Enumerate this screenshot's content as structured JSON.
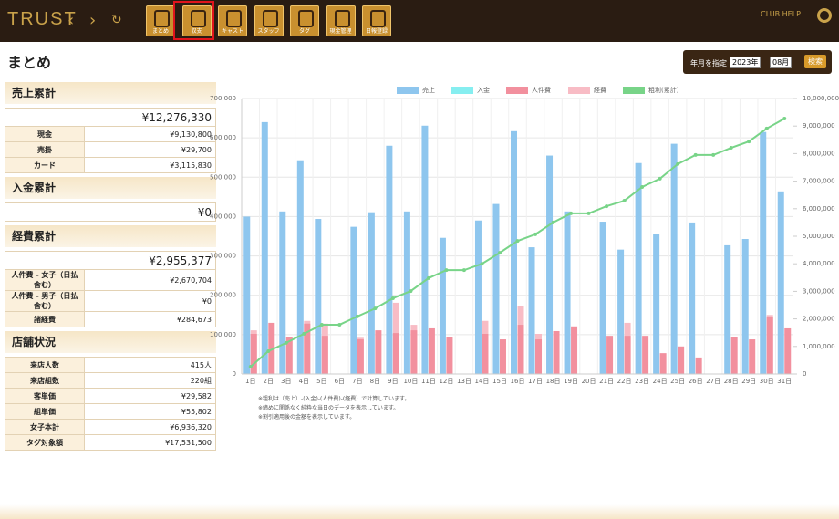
{
  "header": {
    "logo": "TRUST",
    "nav": [
      "まとめ",
      "収支",
      "キャスト",
      "スタッフ",
      "タグ",
      "現金管理",
      "日報登録"
    ],
    "help": "CLUB HELP"
  },
  "page_title": "まとめ",
  "date_filter": {
    "label": "年月を指定",
    "year": "2023年",
    "month": "08月",
    "button": "検索"
  },
  "panels": [
    {
      "title": "売上累計",
      "total": "¥12,276,330",
      "rows": [
        [
          "現金",
          "¥9,130,800"
        ],
        [
          "売掛",
          "¥29,700"
        ],
        [
          "カード",
          "¥3,115,830"
        ]
      ]
    },
    {
      "title": "入金累計",
      "total": "¥0",
      "rows": []
    },
    {
      "title": "経費累計",
      "total": "¥2,955,377",
      "rows": [
        [
          "人件費 - 女子（日払含む）",
          "¥2,670,704"
        ],
        [
          "人件費 - 男子（日払含む）",
          "¥0"
        ],
        [
          "諸経費",
          "¥284,673"
        ]
      ]
    },
    {
      "title": "店舗状況",
      "rows": [
        [
          "来店人数",
          "415人"
        ],
        [
          "来店組数",
          "220組"
        ],
        [
          "客単価",
          "¥29,582"
        ],
        [
          "組単価",
          "¥55,802"
        ],
        [
          "女子本計",
          "¥6,936,320"
        ],
        [
          "タグ対象額",
          "¥17,531,500"
        ]
      ]
    }
  ],
  "notes": [
    "※粗利は（売上）-(入金)-(人件費)-(経費）で計算しています。",
    "※締めに関係なく純粋な当日のデータを表示しています。",
    "※割引適用後の金額を表示しています。"
  ],
  "chart_data": {
    "type": "bar",
    "categories": [
      "1日",
      "2日",
      "3日",
      "4日",
      "5日",
      "6日",
      "7日",
      "8日",
      "9日",
      "10日",
      "11日",
      "12日",
      "13日",
      "14日",
      "15日",
      "16日",
      "17日",
      "18日",
      "19日",
      "20日",
      "21日",
      "22日",
      "23日",
      "24日",
      "25日",
      "26日",
      "27日",
      "28日",
      "29日",
      "30日",
      "31日"
    ],
    "series": [
      {
        "name": "売上",
        "color": "#8ec6ee",
        "values": [
          400000,
          640000,
          413000,
          543000,
          394000,
          0,
          374000,
          411000,
          580000,
          413000,
          631000,
          346000,
          0,
          390000,
          432000,
          617000,
          322000,
          555000,
          413000,
          0,
          387000,
          316000,
          536000,
          355000,
          585000,
          385000,
          0,
          327000,
          343000,
          615000,
          464000
        ]
      },
      {
        "name": "入金",
        "color": "#86eef0",
        "values": [
          0,
          0,
          0,
          0,
          0,
          0,
          0,
          0,
          0,
          0,
          0,
          0,
          0,
          0,
          0,
          0,
          0,
          0,
          0,
          0,
          0,
          0,
          0,
          0,
          0,
          0,
          0,
          0,
          0,
          0,
          0
        ]
      },
      {
        "name": "人件費",
        "color": "#f2909e",
        "values": [
          102000,
          130000,
          93000,
          128000,
          97000,
          0,
          88000,
          111000,
          104000,
          111000,
          116000,
          93000,
          0,
          102000,
          88000,
          125000,
          88000,
          109000,
          121000,
          0,
          97000,
          97000,
          97000,
          53000,
          70000,
          42000,
          0,
          93000,
          88000,
          144000,
          116000
        ]
      },
      {
        "name": "経費",
        "color": "#f8bcc5",
        "values": [
          111000,
          0,
          0,
          135000,
          128000,
          0,
          92000,
          0,
          181000,
          125000,
          0,
          0,
          0,
          135000,
          0,
          172000,
          102000,
          0,
          0,
          0,
          0,
          130000,
          0,
          0,
          0,
          0,
          0,
          0,
          0,
          150000,
          0
        ]
      },
      {
        "name": "粗利(累計)",
        "color": "#78d488",
        "type": "line",
        "axis": "y2",
        "values": [
          265000,
          828000,
          1130000,
          1460000,
          1790000,
          1790000,
          2090000,
          2380000,
          2750000,
          3010000,
          3480000,
          3770000,
          3770000,
          4000000,
          4400000,
          4830000,
          5070000,
          5500000,
          5830000,
          5830000,
          6090000,
          6290000,
          6790000,
          7090000,
          7620000,
          7950000,
          7950000,
          8210000,
          8440000,
          8910000,
          9270000
        ]
      }
    ],
    "ylim": [
      0,
      700000
    ],
    "yticks": [
      0,
      {
        "value": 100000,
        "label": "100,000"
      },
      {
        "value": 200000,
        "label": "200,000"
      },
      {
        "value": 300000,
        "label": "300,000"
      },
      {
        "value": 400000,
        "label": "400,000"
      },
      {
        "value": 500000,
        "label": "500,000"
      },
      {
        "value": 600000,
        "label": "600,000"
      },
      {
        "value": 700000,
        "label": "700,000"
      }
    ],
    "y2lim": [
      0,
      10000000
    ],
    "y2ticks": [
      0,
      {
        "value": 1000000,
        "label": "1,000,000"
      },
      {
        "value": 2000000,
        "label": "2,000,000"
      },
      {
        "value": 3000000,
        "label": "3,000,000"
      },
      {
        "value": 4000000,
        "label": "4,000,000"
      },
      {
        "value": 5000000,
        "label": "5,000,000"
      },
      {
        "value": 6000000,
        "label": "6,000,000"
      },
      {
        "value": 7000000,
        "label": "7,000,000"
      },
      {
        "value": 8000000,
        "label": "8,000,000"
      },
      {
        "value": 9000000,
        "label": "9,000,000"
      },
      {
        "value": 10000000,
        "label": "10,000,000"
      }
    ],
    "grid": true,
    "legend": "top"
  }
}
